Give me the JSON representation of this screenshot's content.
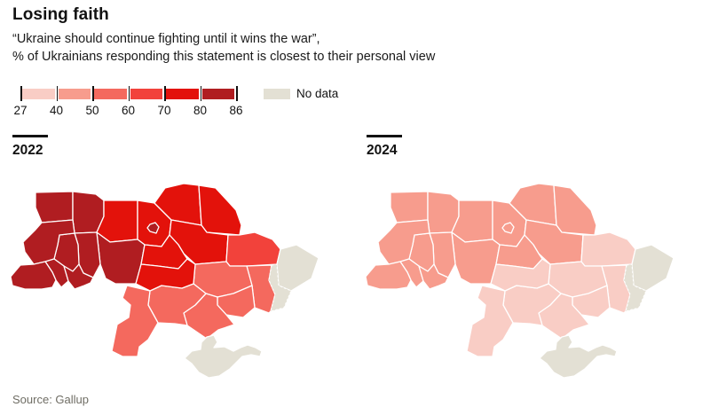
{
  "header": {
    "title": "Losing faith",
    "subtitle_line1": "“Ukraine should continue fighting until it wins the war”,",
    "subtitle_line2": "% of Ukrainians responding this statement is closest to their personal view"
  },
  "legend": {
    "tick_labels": [
      "27",
      "40",
      "50",
      "60",
      "70",
      "80",
      "86"
    ],
    "no_data_label": "No data"
  },
  "source": "Source: Gallup",
  "chart_data": {
    "type": "choropleth",
    "title": "Losing faith",
    "statement": "Ukraine should continue fighting until it wins the war",
    "measure": "% of Ukrainians responding this statement is closest to their personal view",
    "bin_edges": [
      27,
      40,
      50,
      60,
      70,
      80,
      86
    ],
    "bin_colors": [
      "#f9cdc5",
      "#f79c8d",
      "#f4695e",
      "#f2423b",
      "#e3120b",
      "#b01d21"
    ],
    "no_data_color": "#e3e0d4",
    "legend_position": "top-left",
    "maps": [
      {
        "year": "2022",
        "values": {
          "volyn": 5,
          "rivne": 5,
          "lviv": 5,
          "ternopil": 5,
          "khmelnytskyi": 5,
          "ivano_frankivsk": 5,
          "zakarpattia": 5,
          "chernivtsi": 5,
          "vinnytsia": 5,
          "kyiv_city": 5,
          "zhytomyr": 4,
          "kyiv_oblast": 4,
          "chernihiv": 4,
          "sumy": 4,
          "poltava": 4,
          "cherkasy": 4,
          "kirovohrad": 4,
          "kharkiv": 3,
          "dnipropetrovsk": 2,
          "zaporizhzhia": 2,
          "donetsk_west": 2,
          "odesa": 2,
          "mykolaiv": 2,
          "kherson": 2,
          "luhansk": "nd",
          "donetsk_east": "nd",
          "crimea": "nd"
        }
      },
      {
        "year": "2024",
        "values": {
          "volyn": 1,
          "rivne": 1,
          "lviv": 1,
          "ternopil": 1,
          "khmelnytskyi": 1,
          "ivano_frankivsk": 1,
          "zakarpattia": 1,
          "chernivtsi": 1,
          "vinnytsia": 1,
          "kyiv_city": 1,
          "zhytomyr": 1,
          "kyiv_oblast": 1,
          "chernihiv": 1,
          "sumy": 1,
          "poltava": 1,
          "cherkasy": 1,
          "kirovohrad": 0,
          "kharkiv": 0,
          "dnipropetrovsk": 0,
          "zaporizhzhia": 0,
          "donetsk_west": 0,
          "odesa": 0,
          "mykolaiv": 0,
          "kherson": 0,
          "luhansk": "nd",
          "donetsk_east": "nd",
          "crimea": "nd"
        }
      }
    ]
  }
}
